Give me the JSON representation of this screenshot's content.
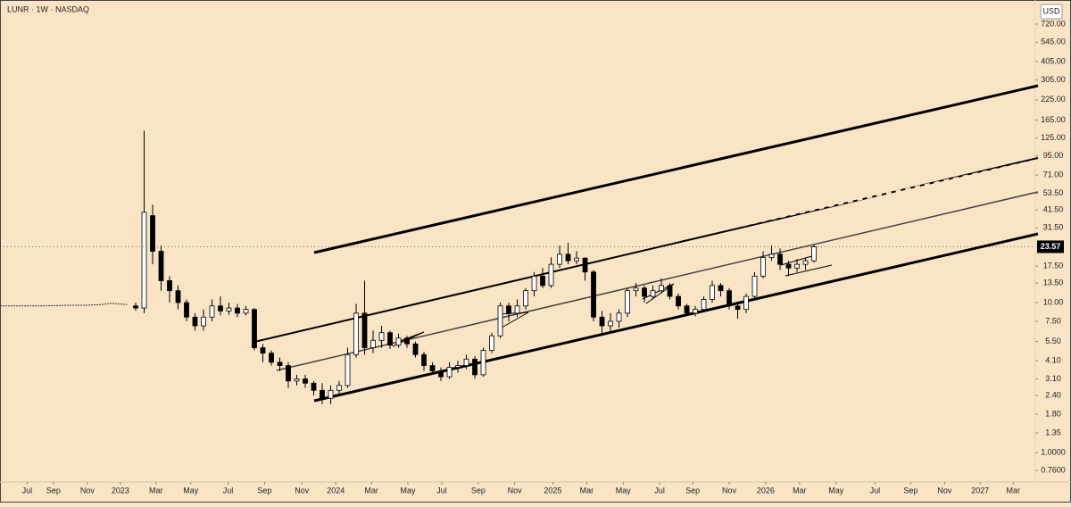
{
  "chart_data": {
    "type": "candlestick",
    "title": "LUNR · 1W · NASDAQ",
    "currency": "USD",
    "log_scale": true,
    "ylim": [
      0.76,
      720
    ],
    "yticks": [
      {
        "value": 720,
        "label": "720.00"
      },
      {
        "value": 545,
        "label": "545.00"
      },
      {
        "value": 405,
        "label": "405.00"
      },
      {
        "value": 305,
        "label": "305.00"
      },
      {
        "value": 225,
        "label": "225.00"
      },
      {
        "value": 165,
        "label": "165.00"
      },
      {
        "value": 125,
        "label": "125.00"
      },
      {
        "value": 95,
        "label": "95.00"
      },
      {
        "value": 71,
        "label": "71.00"
      },
      {
        "value": 53.5,
        "label": "53.50"
      },
      {
        "value": 41.5,
        "label": "41.50"
      },
      {
        "value": 31.5,
        "label": "31.50"
      },
      {
        "value": 17.5,
        "label": "17.50"
      },
      {
        "value": 13.5,
        "label": "13.50"
      },
      {
        "value": 10,
        "label": "10.00"
      },
      {
        "value": 7.5,
        "label": "7.50"
      },
      {
        "value": 5.5,
        "label": "5.50"
      },
      {
        "value": 4.1,
        "label": "4.10"
      },
      {
        "value": 3.1,
        "label": "3.10"
      },
      {
        "value": 2.4,
        "label": "2.40"
      },
      {
        "value": 1.8,
        "label": "1.80"
      },
      {
        "value": 1.35,
        "label": "1.35"
      },
      {
        "value": 1,
        "label": "1.0000"
      },
      {
        "value": 0.76,
        "label": "0.7600"
      }
    ],
    "xlim": [
      0,
      122.1
    ],
    "xticks": [
      {
        "value": 3.2,
        "label": "Jul"
      },
      {
        "value": 6.3,
        "label": "Sep"
      },
      {
        "value": 10.3,
        "label": "Nov"
      },
      {
        "value": 14.2,
        "label": "2023"
      },
      {
        "value": 18.4,
        "label": "Mar"
      },
      {
        "value": 22.5,
        "label": "May"
      },
      {
        "value": 26.9,
        "label": "Jul"
      },
      {
        "value": 31.2,
        "label": "Sep"
      },
      {
        "value": 35.6,
        "label": "Nov"
      },
      {
        "value": 39.6,
        "label": "2024"
      },
      {
        "value": 43.8,
        "label": "Mar"
      },
      {
        "value": 48.1,
        "label": "May"
      },
      {
        "value": 52.1,
        "label": "Jul"
      },
      {
        "value": 56.4,
        "label": "Sep"
      },
      {
        "value": 60.7,
        "label": "Nov"
      },
      {
        "value": 65.2,
        "label": "2025"
      },
      {
        "value": 69.2,
        "label": "Mar"
      },
      {
        "value": 73.5,
        "label": "May"
      },
      {
        "value": 77.8,
        "label": "Jul"
      },
      {
        "value": 81.7,
        "label": "Sep"
      },
      {
        "value": 86,
        "label": "Nov"
      },
      {
        "value": 90.3,
        "label": "2026"
      },
      {
        "value": 94.3,
        "label": "Mar"
      },
      {
        "value": 98.6,
        "label": "May"
      },
      {
        "value": 103.2,
        "label": "Jul"
      },
      {
        "value": 107.4,
        "label": "Sep"
      },
      {
        "value": 111.4,
        "label": "Nov"
      },
      {
        "value": 115.6,
        "label": "2027"
      },
      {
        "value": 119.5,
        "label": "Mar"
      }
    ],
    "last_price": 23.57,
    "pre_listing": {
      "x": [
        0,
        1,
        2,
        3,
        4,
        5,
        6,
        7,
        8,
        9,
        10,
        11,
        12,
        13,
        14,
        15
      ],
      "values": [
        9.5,
        9.5,
        9.5,
        9.5,
        9.5,
        9.5,
        9.55,
        9.55,
        9.6,
        9.6,
        9.6,
        9.65,
        9.7,
        9.9,
        9.8,
        9.7
      ]
    },
    "candles": {
      "x": [
        16,
        17,
        18,
        19,
        20,
        21,
        22,
        23,
        24,
        25,
        26,
        27,
        28,
        29,
        30,
        31,
        32,
        33,
        34,
        35,
        36,
        37,
        38,
        39,
        40,
        41,
        42,
        43,
        44,
        45,
        46,
        47,
        48,
        49,
        50,
        51,
        52,
        53,
        54,
        55,
        56,
        57,
        58,
        59,
        60,
        61,
        62,
        63,
        64,
        65,
        66,
        67,
        68,
        69,
        70,
        71,
        72,
        73,
        74,
        75,
        76,
        77,
        78,
        79,
        80,
        81,
        82,
        83,
        84,
        85,
        86,
        87,
        88,
        89,
        90,
        91,
        92,
        93,
        94,
        95,
        96
      ],
      "open": [
        9.5,
        9.2,
        38,
        22,
        14,
        12,
        10,
        8,
        7,
        8,
        9.5,
        8.8,
        9.2,
        8.5,
        9,
        5,
        4.6,
        4,
        3.8,
        3,
        3.1,
        2.9,
        2.6,
        2.3,
        2.6,
        2.8,
        4.5,
        8.5,
        5,
        5.6,
        6.3,
        5.2,
        5.8,
        5.3,
        4.5,
        3.8,
        3.5,
        3.2,
        3.7,
        3.8,
        4.2,
        3.3,
        4.8,
        6,
        9.5,
        8.5,
        9.5,
        12,
        15,
        13,
        18,
        21,
        19,
        19.8,
        16,
        8,
        7,
        7.5,
        8.5,
        12,
        12.5,
        11,
        12,
        13,
        11,
        9.5,
        8.5,
        9,
        10.5,
        13,
        12,
        9.5,
        9,
        11,
        15,
        20,
        21,
        18,
        17,
        18,
        19
      ],
      "high": [
        10,
        140,
        45,
        24,
        15,
        13,
        10.5,
        8.5,
        9,
        10.5,
        11,
        10,
        9.8,
        9.5,
        9.2,
        5.3,
        4.8,
        4.3,
        4,
        3.3,
        3.3,
        3,
        2.9,
        2.8,
        3,
        5,
        9.8,
        14,
        6.5,
        7,
        6.5,
        6.2,
        6,
        5.5,
        4.7,
        4,
        3.7,
        4,
        4.1,
        4.5,
        4.4,
        5,
        6.3,
        10,
        10,
        10.5,
        12.5,
        16,
        17,
        20,
        24,
        25,
        22,
        20,
        16.5,
        8.8,
        8.5,
        9,
        12.5,
        13.5,
        13,
        13,
        14.5,
        13.5,
        11.5,
        9.8,
        9.5,
        11,
        14,
        13.5,
        12.5,
        10,
        11.5,
        16,
        22,
        24,
        23,
        19,
        19.5,
        20,
        24.2
      ],
      "low": [
        8.8,
        8.5,
        18,
        12,
        10,
        9,
        7.5,
        6.5,
        6.5,
        7.5,
        8.2,
        8.3,
        8,
        8.2,
        4.8,
        4,
        3.8,
        3.5,
        2.7,
        2.8,
        2.7,
        2.4,
        2.1,
        2.1,
        2.4,
        2.7,
        4.3,
        4.5,
        4.6,
        5,
        4.9,
        5,
        5,
        4.3,
        3.5,
        3.3,
        3,
        3.1,
        3.4,
        3.6,
        3.1,
        3.2,
        4.6,
        5.8,
        7.5,
        8,
        9,
        11,
        12.5,
        12.5,
        17,
        18,
        18,
        14,
        7.5,
        6,
        6.2,
        6.8,
        8,
        11,
        10,
        10.5,
        11.5,
        10.5,
        9,
        8.2,
        8.1,
        8.8,
        10,
        11,
        9,
        7.8,
        8.5,
        10.5,
        14.5,
        19,
        16.5,
        15,
        16,
        16.5,
        18.5
      ],
      "close": [
        9.2,
        40,
        22,
        14,
        12,
        10,
        8,
        7,
        8,
        9.5,
        8.8,
        9.2,
        8.5,
        9,
        5,
        4.6,
        4,
        3.8,
        3,
        3.1,
        2.9,
        2.6,
        2.3,
        2.6,
        2.8,
        4.5,
        8.5,
        5,
        5.6,
        6.3,
        5.2,
        5.8,
        5.3,
        4.5,
        3.8,
        3.5,
        3.2,
        3.7,
        3.8,
        4.2,
        3.3,
        4.8,
        6,
        9.5,
        8.5,
        9.5,
        12,
        15,
        13,
        18,
        21,
        19,
        19.8,
        16,
        8,
        7,
        7.5,
        8.5,
        12,
        12.5,
        11,
        12,
        13,
        11,
        9.5,
        8.5,
        9,
        10.5,
        13,
        12,
        9.5,
        9,
        11,
        15,
        20,
        21,
        18,
        17,
        18,
        19,
        23.57
      ]
    }
  }
}
